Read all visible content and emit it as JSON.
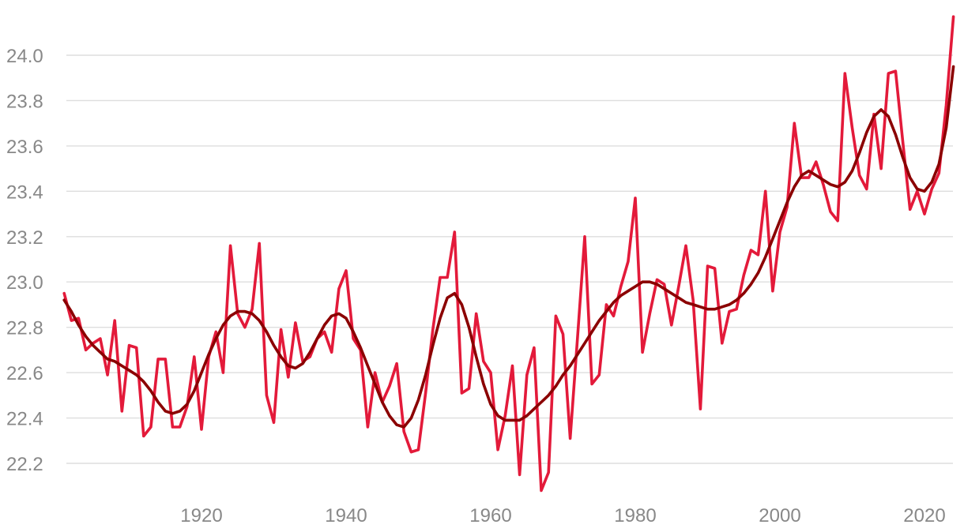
{
  "chart_data": {
    "type": "line",
    "title": "",
    "xlabel": "",
    "ylabel": "",
    "xlim": [
      1899,
      2025
    ],
    "ylim": [
      22.1,
      24.2
    ],
    "grid": "horizontal",
    "legend": "none",
    "x_ticks": [
      1920,
      1940,
      1960,
      1980,
      2000,
      2020
    ],
    "y_ticks": [
      22.2,
      22.4,
      22.6,
      22.8,
      23.0,
      23.2,
      23.4,
      23.6,
      23.8,
      24.0
    ],
    "x": [
      1901,
      1902,
      1903,
      1904,
      1905,
      1906,
      1907,
      1908,
      1909,
      1910,
      1911,
      1912,
      1913,
      1914,
      1915,
      1916,
      1917,
      1918,
      1919,
      1920,
      1921,
      1922,
      1923,
      1924,
      1925,
      1926,
      1927,
      1928,
      1929,
      1930,
      1931,
      1932,
      1933,
      1934,
      1935,
      1936,
      1937,
      1938,
      1939,
      1940,
      1941,
      1942,
      1943,
      1944,
      1945,
      1946,
      1947,
      1948,
      1949,
      1950,
      1951,
      1952,
      1953,
      1954,
      1955,
      1956,
      1957,
      1958,
      1959,
      1960,
      1961,
      1962,
      1963,
      1964,
      1965,
      1966,
      1967,
      1968,
      1969,
      1970,
      1971,
      1972,
      1973,
      1974,
      1975,
      1976,
      1977,
      1978,
      1979,
      1980,
      1981,
      1982,
      1983,
      1984,
      1985,
      1986,
      1987,
      1988,
      1989,
      1990,
      1991,
      1992,
      1993,
      1994,
      1995,
      1996,
      1997,
      1998,
      1999,
      2000,
      2001,
      2002,
      2003,
      2004,
      2005,
      2006,
      2007,
      2008,
      2009,
      2010,
      2011,
      2012,
      2013,
      2014,
      2015,
      2016,
      2017,
      2018,
      2019,
      2020,
      2021,
      2022,
      2023,
      2024
    ],
    "series": [
      {
        "color": "#e31a3a",
        "values": [
          22.95,
          22.83,
          22.84,
          22.7,
          22.73,
          22.75,
          22.59,
          22.83,
          22.43,
          22.72,
          22.71,
          22.32,
          22.36,
          22.66,
          22.66,
          22.36,
          22.36,
          22.45,
          22.67,
          22.35,
          22.67,
          22.78,
          22.6,
          23.16,
          22.86,
          22.8,
          22.88,
          23.17,
          22.5,
          22.38,
          22.79,
          22.58,
          22.82,
          22.65,
          22.67,
          22.75,
          22.78,
          22.69,
          22.97,
          23.05,
          22.75,
          22.7,
          22.36,
          22.6,
          22.47,
          22.54,
          22.64,
          22.34,
          22.25,
          22.26,
          22.51,
          22.79,
          23.02,
          23.02,
          23.22,
          22.51,
          22.53,
          22.86,
          22.65,
          22.6,
          22.26,
          22.41,
          22.63,
          22.15,
          22.59,
          22.71,
          22.08,
          22.16,
          22.85,
          22.77,
          22.31,
          22.75,
          23.2,
          22.55,
          22.59,
          22.9,
          22.85,
          22.98,
          23.09,
          23.37,
          22.69,
          22.86,
          23.01,
          22.99,
          22.81,
          22.98,
          23.16,
          22.92,
          22.44,
          23.07,
          23.06,
          22.73,
          22.87,
          22.88,
          23.03,
          23.14,
          23.12,
          23.4,
          22.96,
          23.22,
          23.33,
          23.7,
          23.46,
          23.46,
          23.53,
          23.43,
          23.31,
          23.27,
          23.92,
          23.68,
          23.47,
          23.41,
          23.74,
          23.5,
          23.92,
          23.93,
          23.62,
          23.32,
          23.4,
          23.3,
          23.41,
          23.48,
          23.78,
          24.17
        ]
      },
      {
        "color": "#8b0000",
        "values": [
          22.92,
          22.87,
          22.81,
          22.76,
          22.72,
          22.69,
          22.66,
          22.65,
          22.63,
          22.61,
          22.59,
          22.56,
          22.52,
          22.47,
          22.43,
          22.42,
          22.43,
          22.46,
          22.52,
          22.6,
          22.68,
          22.75,
          22.81,
          22.85,
          22.87,
          22.87,
          22.86,
          22.83,
          22.78,
          22.72,
          22.67,
          22.63,
          22.62,
          22.64,
          22.69,
          22.75,
          22.81,
          22.85,
          22.86,
          22.84,
          22.78,
          22.71,
          22.63,
          22.55,
          22.47,
          22.41,
          22.37,
          22.36,
          22.4,
          22.48,
          22.59,
          22.72,
          22.84,
          22.93,
          22.95,
          22.9,
          22.8,
          22.67,
          22.55,
          22.46,
          22.41,
          22.39,
          22.39,
          22.39,
          22.41,
          22.44,
          22.47,
          22.5,
          22.54,
          22.59,
          22.63,
          22.68,
          22.73,
          22.78,
          22.83,
          22.87,
          22.91,
          22.94,
          22.96,
          22.98,
          23.0,
          23.0,
          22.99,
          22.97,
          22.95,
          22.93,
          22.91,
          22.9,
          22.89,
          22.88,
          22.88,
          22.89,
          22.9,
          22.92,
          22.95,
          22.99,
          23.04,
          23.11,
          23.19,
          23.27,
          23.35,
          23.42,
          23.47,
          23.49,
          23.47,
          23.45,
          23.43,
          23.42,
          23.44,
          23.49,
          23.57,
          23.66,
          23.73,
          23.76,
          23.73,
          23.65,
          23.55,
          23.46,
          23.41,
          23.4,
          23.44,
          23.52,
          23.68,
          23.95
        ]
      }
    ]
  }
}
